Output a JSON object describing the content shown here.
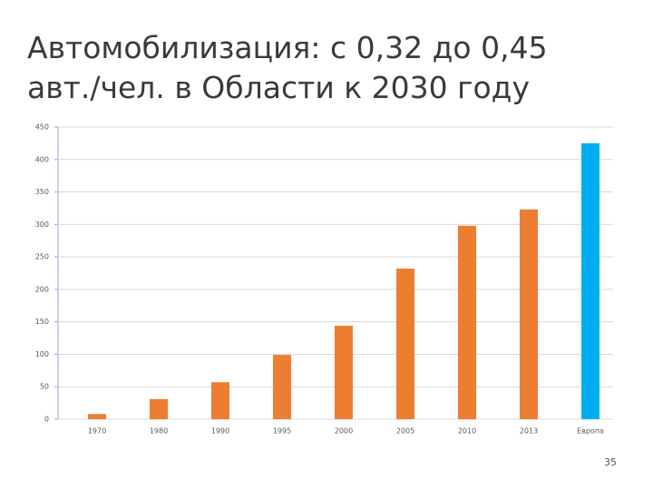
{
  "chart_data": {
    "type": "bar",
    "title": [
      "Автомобилизация: с 0,32 до 0,45",
      "авт./чел. в Области к 2030 году"
    ],
    "categories": [
      "1970",
      "1980",
      "1990",
      "1995",
      "2000",
      "2005",
      "2010",
      "2013",
      "Европа"
    ],
    "values": [
      8,
      31,
      57,
      99,
      144,
      232,
      298,
      323,
      425
    ],
    "colors": [
      "#ed7d31",
      "#ed7d31",
      "#ed7d31",
      "#ed7d31",
      "#ed7d31",
      "#ed7d31",
      "#ed7d31",
      "#ed7d31",
      "#00aeef"
    ],
    "ylim": [
      0,
      450
    ],
    "yticks": [
      0,
      50,
      100,
      150,
      200,
      250,
      300,
      350,
      400,
      450
    ],
    "grid": true
  },
  "page_number": "35"
}
